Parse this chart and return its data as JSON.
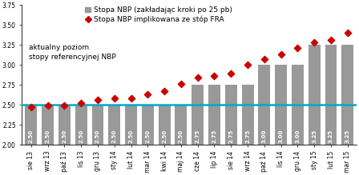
{
  "categories": [
    "sie 13",
    "wrz 13",
    "paź 13",
    "lis 13",
    "gru 13",
    "sty 14",
    "lut 14",
    "mar 14",
    "kwi 14",
    "maj 14",
    "cze 14",
    "lip 14",
    "sie 14",
    "wrz 14",
    "paź 14",
    "lis 14",
    "gru 14",
    "sty 15",
    "lut 15",
    "mar 15"
  ],
  "bar_values": [
    2.5,
    2.5,
    2.5,
    2.5,
    2.5,
    2.5,
    2.5,
    2.5,
    2.5,
    2.5,
    2.75,
    2.75,
    2.75,
    2.75,
    3.0,
    3.0,
    3.0,
    3.25,
    3.25,
    3.25
  ],
  "fra_values": [
    2.47,
    2.49,
    2.49,
    2.52,
    2.56,
    2.58,
    2.58,
    2.63,
    2.67,
    2.76,
    2.84,
    2.86,
    2.89,
    3.0,
    3.07,
    3.13,
    3.21,
    3.28,
    3.31,
    3.4
  ],
  "reference_line": 2.5,
  "bar_color": "#999999",
  "fra_color": "#cc0000",
  "reference_line_color": "#00aacc",
  "legend1": "Stopa NBP (zakładając kroki po 25 pb)",
  "legend2": "Stopa NBP implikowana ze stóp FRA",
  "annotation_line1": "aktualny poziom",
  "annotation_line2": "stopy referencyjnej NBP",
  "ylim_min": 2.0,
  "ylim_max": 3.75,
  "yticks": [
    2.0,
    2.25,
    2.5,
    2.75,
    3.0,
    3.25,
    3.5,
    3.75
  ],
  "bar_label_color": "#ffffff",
  "bar_label_fontsize": 5.0,
  "tick_fontsize": 5.5,
  "annotation_fontsize": 6.5,
  "legend_fontsize": 6.5
}
